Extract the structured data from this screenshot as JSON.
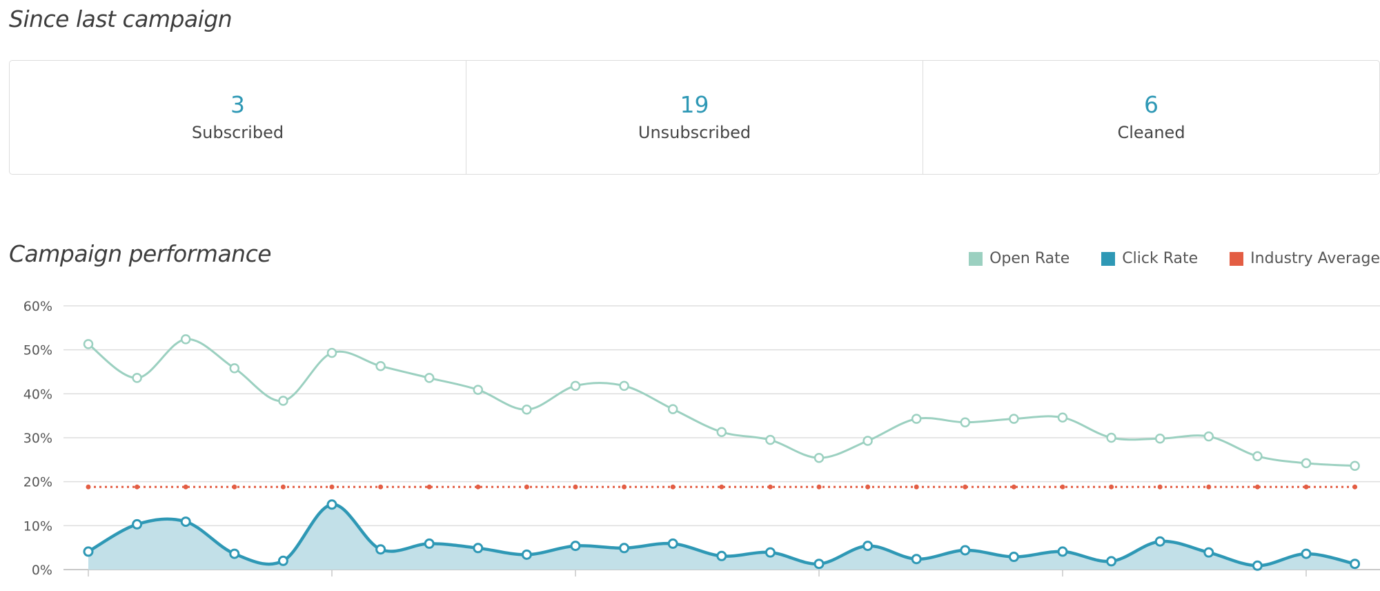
{
  "since_last_campaign": {
    "title": "Since last campaign",
    "stats": [
      {
        "value": "3",
        "label": "Subscribed"
      },
      {
        "value": "19",
        "label": "Unsubscribed"
      },
      {
        "value": "6",
        "label": "Cleaned"
      }
    ]
  },
  "campaign_performance": {
    "title": "Campaign performance"
  },
  "colors": {
    "open_rate": "#9bd0c0",
    "click_rate": "#2e98b5",
    "click_fill": "#c2e0e8",
    "industry_average": "#e35d43",
    "stat_value": "#2e98b5"
  },
  "chart_data": {
    "type": "line",
    "ylim": [
      0,
      60
    ],
    "yticks": [
      "0%",
      "10%",
      "20%",
      "30%",
      "40%",
      "50%",
      "60%"
    ],
    "ytick_values": [
      0,
      10,
      20,
      30,
      40,
      50,
      60
    ],
    "grid": true,
    "legend_position": "top-right",
    "x_count": 27,
    "series": [
      {
        "name": "Open Rate",
        "color": "#9bd0c0",
        "values": [
          51.3,
          43.6,
          52.4,
          45.8,
          38.4,
          49.3,
          46.3,
          43.6,
          40.9,
          36.4,
          41.8,
          41.8,
          36.5,
          31.3,
          29.5,
          25.4,
          29.3,
          34.3,
          33.5,
          34.3,
          34.6,
          30.0,
          29.8,
          30.3,
          25.8,
          24.2,
          23.6
        ]
      },
      {
        "name": "Click Rate",
        "color": "#2e98b5",
        "values": [
          4.1,
          10.3,
          10.9,
          3.6,
          2.0,
          14.8,
          4.6,
          5.9,
          4.9,
          3.4,
          5.4,
          4.9,
          5.9,
          3.1,
          3.9,
          1.3,
          5.4,
          2.4,
          4.4,
          2.9,
          4.1,
          1.9,
          6.4,
          3.9,
          0.9,
          3.6,
          1.3
        ]
      },
      {
        "name": "Industry Average",
        "color": "#e35d43",
        "values": [
          18.8,
          18.8,
          18.8,
          18.8,
          18.8,
          18.8,
          18.8,
          18.8,
          18.8,
          18.8,
          18.8,
          18.8,
          18.8,
          18.8,
          18.8,
          18.8,
          18.8,
          18.8,
          18.8,
          18.8,
          18.8,
          18.8,
          18.8,
          18.8,
          18.8,
          18.8,
          18.8
        ]
      }
    ]
  }
}
